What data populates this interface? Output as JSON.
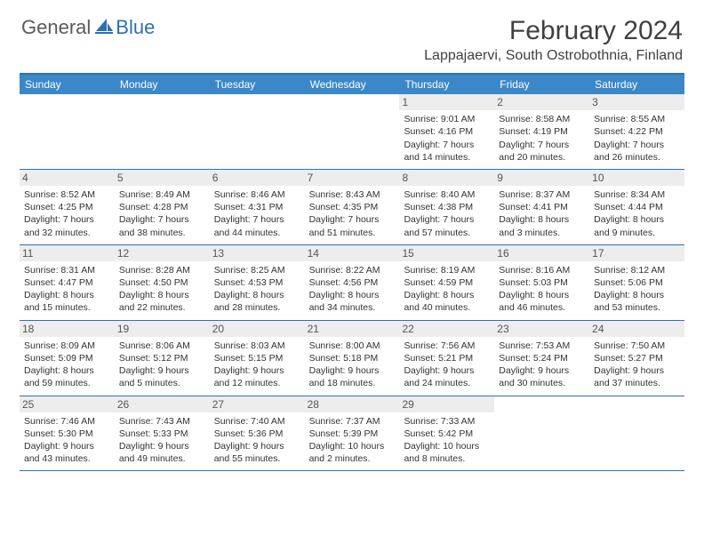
{
  "brand": {
    "general": "General",
    "blue": "Blue"
  },
  "title": "February 2024",
  "location": "Lappajaervi, South Ostrobothnia, Finland",
  "colors": {
    "header_bar": "#3b87c8",
    "border": "#2d71b8",
    "daynum_bg": "#ededed",
    "text": "#333333",
    "title_text": "#404040"
  },
  "dow": [
    "Sunday",
    "Monday",
    "Tuesday",
    "Wednesday",
    "Thursday",
    "Friday",
    "Saturday"
  ],
  "weeks": [
    [
      null,
      null,
      null,
      null,
      {
        "n": "1",
        "sr": "Sunrise: 9:01 AM",
        "ss": "Sunset: 4:16 PM",
        "d1": "Daylight: 7 hours",
        "d2": "and 14 minutes."
      },
      {
        "n": "2",
        "sr": "Sunrise: 8:58 AM",
        "ss": "Sunset: 4:19 PM",
        "d1": "Daylight: 7 hours",
        "d2": "and 20 minutes."
      },
      {
        "n": "3",
        "sr": "Sunrise: 8:55 AM",
        "ss": "Sunset: 4:22 PM",
        "d1": "Daylight: 7 hours",
        "d2": "and 26 minutes."
      }
    ],
    [
      {
        "n": "4",
        "sr": "Sunrise: 8:52 AM",
        "ss": "Sunset: 4:25 PM",
        "d1": "Daylight: 7 hours",
        "d2": "and 32 minutes."
      },
      {
        "n": "5",
        "sr": "Sunrise: 8:49 AM",
        "ss": "Sunset: 4:28 PM",
        "d1": "Daylight: 7 hours",
        "d2": "and 38 minutes."
      },
      {
        "n": "6",
        "sr": "Sunrise: 8:46 AM",
        "ss": "Sunset: 4:31 PM",
        "d1": "Daylight: 7 hours",
        "d2": "and 44 minutes."
      },
      {
        "n": "7",
        "sr": "Sunrise: 8:43 AM",
        "ss": "Sunset: 4:35 PM",
        "d1": "Daylight: 7 hours",
        "d2": "and 51 minutes."
      },
      {
        "n": "8",
        "sr": "Sunrise: 8:40 AM",
        "ss": "Sunset: 4:38 PM",
        "d1": "Daylight: 7 hours",
        "d2": "and 57 minutes."
      },
      {
        "n": "9",
        "sr": "Sunrise: 8:37 AM",
        "ss": "Sunset: 4:41 PM",
        "d1": "Daylight: 8 hours",
        "d2": "and 3 minutes."
      },
      {
        "n": "10",
        "sr": "Sunrise: 8:34 AM",
        "ss": "Sunset: 4:44 PM",
        "d1": "Daylight: 8 hours",
        "d2": "and 9 minutes."
      }
    ],
    [
      {
        "n": "11",
        "sr": "Sunrise: 8:31 AM",
        "ss": "Sunset: 4:47 PM",
        "d1": "Daylight: 8 hours",
        "d2": "and 15 minutes."
      },
      {
        "n": "12",
        "sr": "Sunrise: 8:28 AM",
        "ss": "Sunset: 4:50 PM",
        "d1": "Daylight: 8 hours",
        "d2": "and 22 minutes."
      },
      {
        "n": "13",
        "sr": "Sunrise: 8:25 AM",
        "ss": "Sunset: 4:53 PM",
        "d1": "Daylight: 8 hours",
        "d2": "and 28 minutes."
      },
      {
        "n": "14",
        "sr": "Sunrise: 8:22 AM",
        "ss": "Sunset: 4:56 PM",
        "d1": "Daylight: 8 hours",
        "d2": "and 34 minutes."
      },
      {
        "n": "15",
        "sr": "Sunrise: 8:19 AM",
        "ss": "Sunset: 4:59 PM",
        "d1": "Daylight: 8 hours",
        "d2": "and 40 minutes."
      },
      {
        "n": "16",
        "sr": "Sunrise: 8:16 AM",
        "ss": "Sunset: 5:03 PM",
        "d1": "Daylight: 8 hours",
        "d2": "and 46 minutes."
      },
      {
        "n": "17",
        "sr": "Sunrise: 8:12 AM",
        "ss": "Sunset: 5:06 PM",
        "d1": "Daylight: 8 hours",
        "d2": "and 53 minutes."
      }
    ],
    [
      {
        "n": "18",
        "sr": "Sunrise: 8:09 AM",
        "ss": "Sunset: 5:09 PM",
        "d1": "Daylight: 8 hours",
        "d2": "and 59 minutes."
      },
      {
        "n": "19",
        "sr": "Sunrise: 8:06 AM",
        "ss": "Sunset: 5:12 PM",
        "d1": "Daylight: 9 hours",
        "d2": "and 5 minutes."
      },
      {
        "n": "20",
        "sr": "Sunrise: 8:03 AM",
        "ss": "Sunset: 5:15 PM",
        "d1": "Daylight: 9 hours",
        "d2": "and 12 minutes."
      },
      {
        "n": "21",
        "sr": "Sunrise: 8:00 AM",
        "ss": "Sunset: 5:18 PM",
        "d1": "Daylight: 9 hours",
        "d2": "and 18 minutes."
      },
      {
        "n": "22",
        "sr": "Sunrise: 7:56 AM",
        "ss": "Sunset: 5:21 PM",
        "d1": "Daylight: 9 hours",
        "d2": "and 24 minutes."
      },
      {
        "n": "23",
        "sr": "Sunrise: 7:53 AM",
        "ss": "Sunset: 5:24 PM",
        "d1": "Daylight: 9 hours",
        "d2": "and 30 minutes."
      },
      {
        "n": "24",
        "sr": "Sunrise: 7:50 AM",
        "ss": "Sunset: 5:27 PM",
        "d1": "Daylight: 9 hours",
        "d2": "and 37 minutes."
      }
    ],
    [
      {
        "n": "25",
        "sr": "Sunrise: 7:46 AM",
        "ss": "Sunset: 5:30 PM",
        "d1": "Daylight: 9 hours",
        "d2": "and 43 minutes."
      },
      {
        "n": "26",
        "sr": "Sunrise: 7:43 AM",
        "ss": "Sunset: 5:33 PM",
        "d1": "Daylight: 9 hours",
        "d2": "and 49 minutes."
      },
      {
        "n": "27",
        "sr": "Sunrise: 7:40 AM",
        "ss": "Sunset: 5:36 PM",
        "d1": "Daylight: 9 hours",
        "d2": "and 55 minutes."
      },
      {
        "n": "28",
        "sr": "Sunrise: 7:37 AM",
        "ss": "Sunset: 5:39 PM",
        "d1": "Daylight: 10 hours",
        "d2": "and 2 minutes."
      },
      {
        "n": "29",
        "sr": "Sunrise: 7:33 AM",
        "ss": "Sunset: 5:42 PM",
        "d1": "Daylight: 10 hours",
        "d2": "and 8 minutes."
      },
      null,
      null
    ]
  ]
}
